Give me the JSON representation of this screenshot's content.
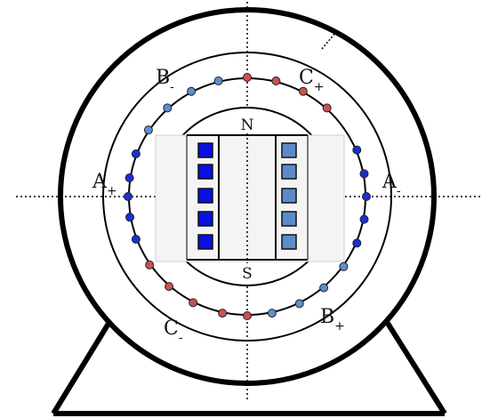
{
  "phase_labels": {
    "a_plus": {
      "main": "A",
      "sign": "+"
    },
    "a_minus": {
      "main": "A",
      "sign": "-"
    },
    "b_minus": {
      "main": "B",
      "sign": "-"
    },
    "b_plus": {
      "main": "B",
      "sign": "+"
    },
    "c_plus": {
      "main": "C",
      "sign": "+"
    },
    "c_minus": {
      "main": "C",
      "sign": "-"
    }
  },
  "rotor_poles": {
    "north": "N",
    "south": "S"
  },
  "colors": {
    "outline": "#000000",
    "conductor_red": "#c9514f",
    "conductor_blue": "#1a2fd6",
    "conductor_light_blue": "#5b8fd1",
    "field_coil_left": "#0a10e0",
    "field_coil_right": "#5b8cc9",
    "rotor_panel": "#f4f4f4"
  },
  "icons": {
    "stator_conductor": "filled-circle",
    "rotor_coil": "filled-square"
  }
}
